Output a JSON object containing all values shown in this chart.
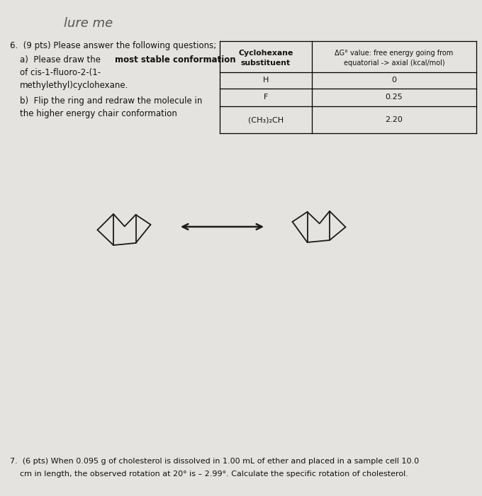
{
  "background_color": "#e5e3e0",
  "handwriting_text": "lure me",
  "table_col1_header": "Cyclohexane\nsubstituent",
  "table_col2_header": "ΔG° value: free energy going from\nequatorial -> axial (kcal/mol)",
  "table_rows": [
    [
      "H",
      "0"
    ],
    [
      "F",
      "0.25"
    ],
    [
      "(CH₃)₂CH",
      "2.20"
    ]
  ],
  "q6_text": "6.  (9 pts) Please answer the following questions;",
  "q6a_normal": "a)  Please draw the ",
  "q6a_bold": "most stable conformation",
  "q6a_line2": "of cis-1-fluoro-2-(1-",
  "q6a_line3": "methylethyl)cyclohexane.",
  "q6b_line1": "b)  Flip the ring and redraw the molecule in",
  "q6b_line2": "the higher energy chair conformation",
  "q7_line1": "7.  (6 pts) When 0.095 g of cholesterol is dissolved in 1.00 mL of ether and placed in a sample cell 10.0",
  "q7_line2": "    cm in length, the observed rotation at 20° is – 2.99°. Calculate the specific rotation of cholesterol.",
  "chair_lw": 1.3,
  "chair_color": "#1a1a1a"
}
